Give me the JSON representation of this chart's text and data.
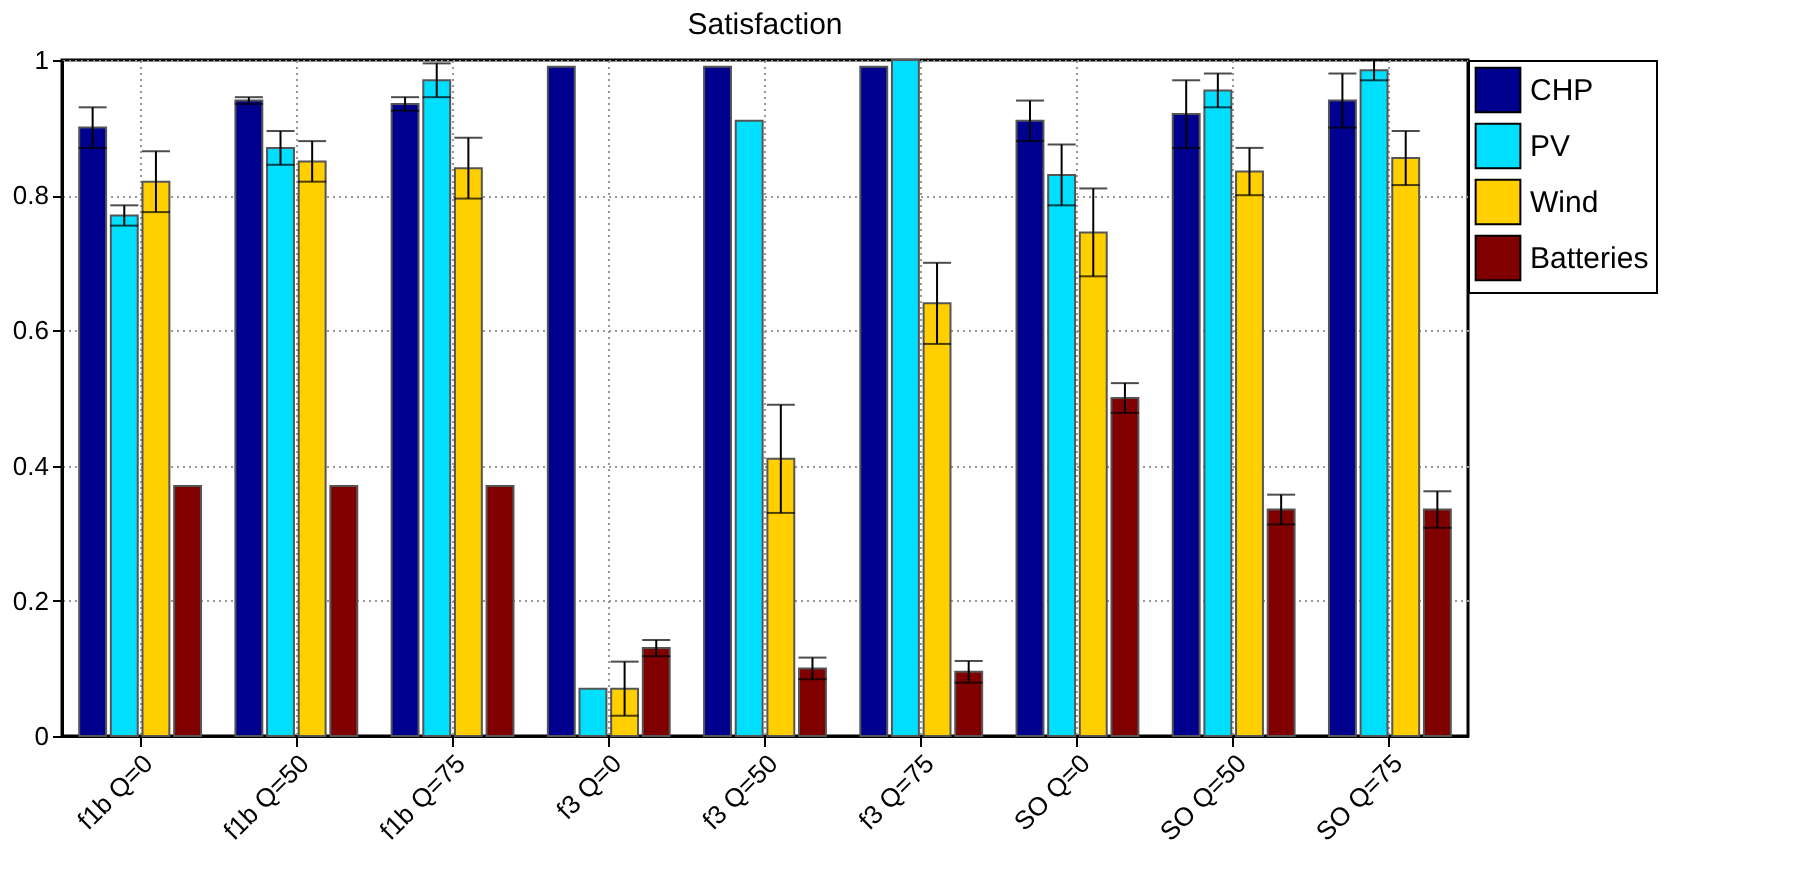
{
  "chart_data": {
    "type": "bar",
    "title": "Satisfaction",
    "categories": [
      "f1b Q=0",
      "f1b Q=50",
      "f1b Q=75",
      "f3  Q=0",
      "f3  Q=50",
      "f3  Q=75",
      "SO  Q=0",
      "SO  Q=50",
      "SO  Q=75"
    ],
    "series": [
      {
        "name": "CHP",
        "color": "#00008f",
        "values": [
          0.9,
          0.94,
          0.935,
          0.99,
          0.99,
          0.99,
          0.91,
          0.92,
          0.94
        ],
        "errors": [
          0.03,
          0.005,
          0.01,
          null,
          null,
          null,
          0.03,
          0.05,
          0.04
        ]
      },
      {
        "name": "PV",
        "color": "#00dfff",
        "values": [
          0.77,
          0.87,
          0.97,
          0.07,
          0.91,
          1.0,
          0.83,
          0.955,
          0.985
        ],
        "errors": [
          0.015,
          0.025,
          0.025,
          null,
          null,
          null,
          0.045,
          0.025,
          0.015
        ]
      },
      {
        "name": "Wind",
        "color": "#ffcf00",
        "values": [
          0.82,
          0.85,
          0.84,
          0.07,
          0.41,
          0.64,
          0.745,
          0.835,
          0.855
        ],
        "errors": [
          0.045,
          0.03,
          0.045,
          0.04,
          0.08,
          0.06,
          0.065,
          0.035,
          0.04
        ]
      },
      {
        "name": "Batteries",
        "color": "#800000",
        "values": [
          0.37,
          0.37,
          0.37,
          0.13,
          0.1,
          0.095,
          0.5,
          0.335,
          0.335
        ],
        "errors": [
          null,
          null,
          null,
          0.012,
          0.016,
          0.016,
          0.022,
          0.022,
          0.027
        ]
      }
    ],
    "ylim": [
      0,
      1
    ],
    "yticks": [
      0,
      0.2,
      0.4,
      0.6,
      0.8,
      1
    ],
    "grid": true,
    "legend": "top right"
  }
}
